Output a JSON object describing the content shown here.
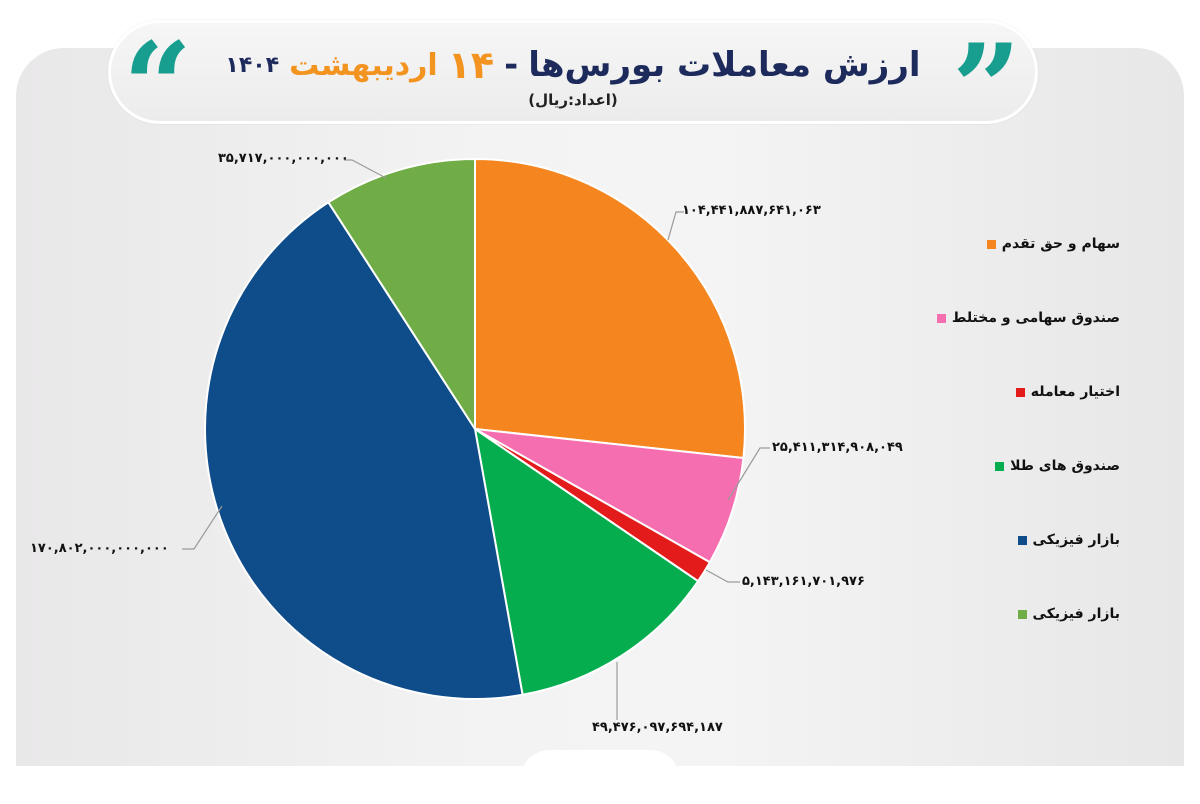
{
  "header": {
    "title_main": "ارزش معاملات بورس‌ها",
    "title_dash": "-",
    "title_day": "۱۴",
    "title_month": "اردیبهشت",
    "title_year": "۱۴۰۴",
    "subtitle": "(اعداد:ریال)",
    "quote_open": "“",
    "quote_close": "”",
    "accent_color": "#179e8f",
    "highlight_color": "#f39320",
    "title_color": "#1d2b5c"
  },
  "legend": [
    {
      "label": "سهام و حق تقدم",
      "color": "#f5861f"
    },
    {
      "label": "صندوق سهامی و مختلط",
      "color": "#f56eb0"
    },
    {
      "label": "اختیار معامله",
      "color": "#e31b1b"
    },
    {
      "label": "صندوق های طلا",
      "color": "#06ad4f"
    },
    {
      "label": "بازار فیزیکی",
      "color": "#0e4c8a"
    },
    {
      "label": "بازار فیزیکی",
      "color": "#70ad47"
    }
  ],
  "value_labels": {
    "orange": "۱۰۴,۴۴۱,۸۸۷,۶۴۱,۰۶۳",
    "pink": "۲۵,۴۱۱,۳۱۴,۹۰۸,۰۴۹",
    "red": "۵,۱۴۳,۱۶۱,۷۰۱,۹۷۶",
    "green": "۴۹,۴۷۶,۰۹۷,۶۹۴,۱۸۷",
    "blue": "۱۷۰,۸۰۲,۰۰۰,۰۰۰,۰۰۰",
    "lightgreen": "۳۵,۷۱۷,۰۰۰,۰۰۰,۰۰۰"
  },
  "chart_data": {
    "type": "pie",
    "title": "ارزش معاملات بورس‌ها - ۱۴ اردیبهشت ۱۴۰۴",
    "subtitle": "(اعداد:ریال)",
    "unit": "ریال",
    "categories": [
      "سهام و حق تقدم",
      "صندوق سهامی و مختلط",
      "اختیار معامله",
      "صندوق های طلا",
      "بازار فیزیکی",
      "بازار فیزیکی"
    ],
    "values": [
      104441887641063,
      25411314908049,
      5143161701976,
      49476097694187,
      170802000000000,
      35717000000000
    ],
    "colors": [
      "#f5861f",
      "#f56eb0",
      "#e31b1b",
      "#06ad4f",
      "#0e4c8a",
      "#70ad47"
    ],
    "start_angle": "12 o'clock, clockwise",
    "legend_position": "right",
    "data_labels": "outside with leader lines"
  }
}
